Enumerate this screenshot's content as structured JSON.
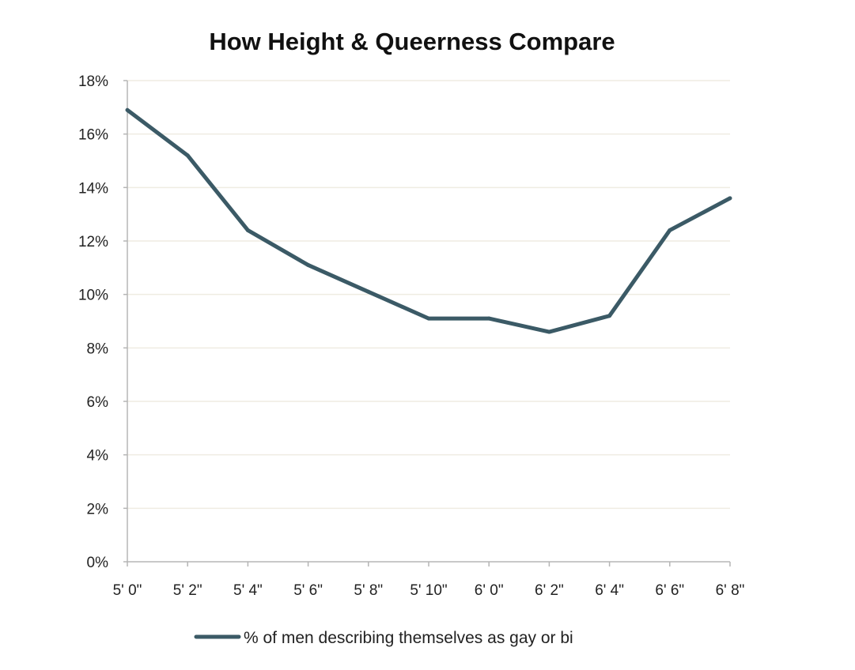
{
  "chart_data": {
    "type": "line",
    "title": "How Height & Queerness Compare",
    "xlabel": "",
    "ylabel": "",
    "categories": [
      "5' 0\"",
      "5' 2\"",
      "5' 4\"",
      "5' 6\"",
      "5' 8\"",
      "5' 10\"",
      "6' 0\"",
      "6' 2\"",
      "6' 4\"",
      "6' 6\"",
      "6' 8\""
    ],
    "series": [
      {
        "name": "% of men describing themselves as gay or bi",
        "values": [
          16.9,
          15.2,
          12.4,
          11.1,
          10.1,
          9.1,
          9.1,
          8.6,
          9.2,
          12.4,
          13.6
        ],
        "color": "#3b5a66"
      }
    ],
    "ylim": [
      0,
      18
    ],
    "yticks": [
      0,
      2,
      4,
      6,
      8,
      10,
      12,
      14,
      16,
      18
    ],
    "ytick_labels": [
      "0%",
      "2%",
      "4%",
      "6%",
      "8%",
      "10%",
      "12%",
      "14%",
      "16%",
      "18%"
    ],
    "grid": true,
    "legend_position": "bottom",
    "colors": {
      "line": "#3b5a66",
      "grid": "#efece2",
      "axis": "#b5b5b5"
    }
  }
}
